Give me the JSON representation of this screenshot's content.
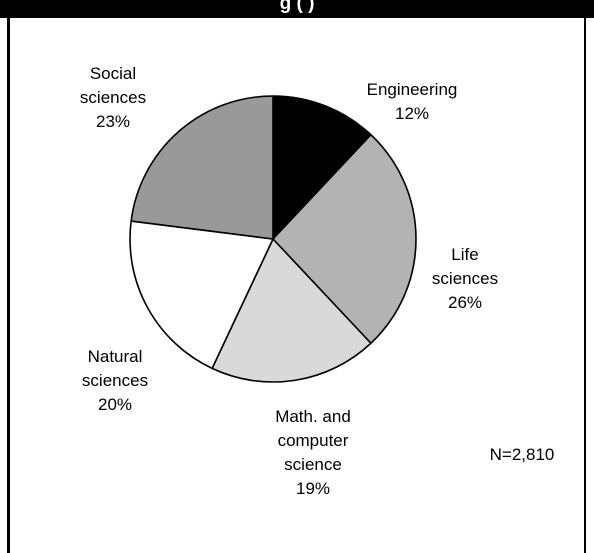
{
  "header": {
    "title_visible_fragment": "g                              (    )"
  },
  "colors": {
    "header_background": "#000000",
    "engineering": "#000000",
    "life_sciences": "#b3b3b3",
    "math_cs": "#d9d9d9",
    "natural_sciences": "#ffffff",
    "social_sciences": "#999999",
    "outline": "#000000"
  },
  "chart_data": {
    "type": "pie",
    "title": "",
    "start_angle_deg": 0,
    "direction": "clockwise",
    "slices": [
      {
        "label_lines": [
          "Engineering",
          "12%"
        ],
        "value": 12,
        "color": "#000000"
      },
      {
        "label_lines": [
          "Life",
          "sciences",
          "26%"
        ],
        "value": 26,
        "color": "#b3b3b3"
      },
      {
        "label_lines": [
          "Math. and",
          "computer",
          "science",
          "19%"
        ],
        "value": 19,
        "color": "#d9d9d9"
      },
      {
        "label_lines": [
          "Natural",
          "sciences",
          "20%"
        ],
        "value": 20,
        "color": "#ffffff"
      },
      {
        "label_lines": [
          "Social",
          "sciences",
          "23%"
        ],
        "value": 23,
        "color": "#999999"
      }
    ],
    "annotation": "N=2,810",
    "legend": "none",
    "grid": false
  }
}
